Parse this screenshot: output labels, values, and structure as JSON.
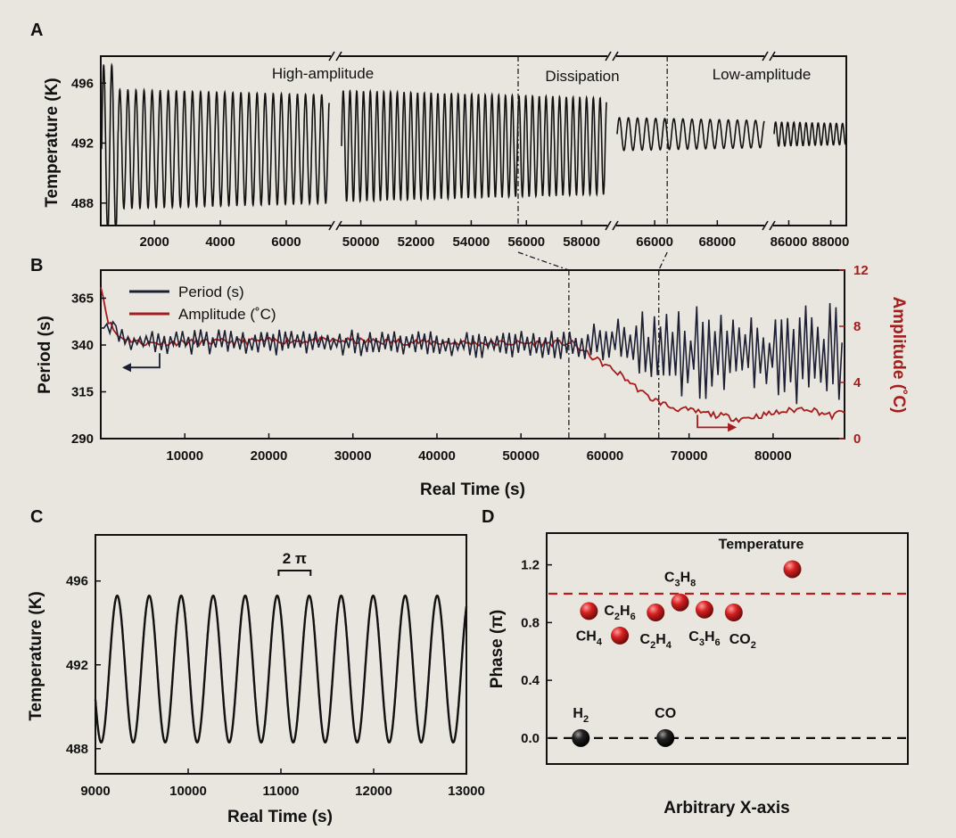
{
  "colors": {
    "period": "#1c1f33",
    "amplitude": "#a51c1c",
    "black": "#111111",
    "phase_red": "#c01818",
    "phase_black": "#111111",
    "ref_line_red": "#b81c1c"
  },
  "panels": {
    "a": {
      "letter": "A",
      "ylabel": "Temperature (K)",
      "regions": [
        "High-amplitude",
        "Dissipation",
        "Low-amplitude"
      ]
    },
    "b": {
      "letter": "B",
      "ylabel_left": "Period (s)",
      "ylabel_right": "Amplitude (˚C)",
      "xlabel": "Real Time (s)"
    },
    "c": {
      "letter": "C",
      "ylabel": "Temperature (K)",
      "xlabel": "Real Time (s)",
      "annotation": "2 π"
    },
    "d": {
      "letter": "D",
      "ylabel": "Phase (π)",
      "xlabel": "Arbitrary X-axis"
    }
  },
  "chart_data": [
    {
      "id": "A",
      "type": "line",
      "name": "temperature-segments",
      "ylabel": "Temperature (K)",
      "ylim": [
        486.5,
        497.8
      ],
      "yticks": [
        488,
        492,
        496
      ],
      "segments": [
        {
          "xlim": [
            400,
            7300
          ],
          "xticks": [
            2000,
            4000,
            6000
          ],
          "period": 245,
          "center": 491.6,
          "amp_start": 4.0,
          "amp_end": 3.6
        },
        {
          "xlim": [
            49300,
            58900
          ],
          "xticks": [
            50000,
            52000,
            54000,
            56000,
            58000
          ],
          "period": 245,
          "center": 491.8,
          "amp_start": 3.7,
          "amp_end": 3.2
        },
        {
          "xlim": [
            64800,
            69500
          ],
          "xticks": [
            66000,
            68000
          ],
          "period": 290,
          "center": 492.6,
          "amp_start": 1.1,
          "amp_end": 0.9
        },
        {
          "xlim": [
            85300,
            88700
          ],
          "xticks": [
            86000,
            88000
          ],
          "period": 290,
          "center": 492.6,
          "amp_start": 0.8,
          "amp_end": 0.7
        }
      ],
      "dashed_markers_x": [
        55700,
        66400
      ]
    },
    {
      "id": "B",
      "type": "line",
      "xlabel": "Real Time (s)",
      "xlim": [
        0,
        88500
      ],
      "xticks": [
        10000,
        20000,
        30000,
        40000,
        50000,
        60000,
        70000,
        80000
      ],
      "y_left": {
        "label": "Period (s)",
        "lim": [
          290,
          380
        ],
        "ticks": [
          290,
          315,
          340,
          365
        ]
      },
      "y_right": {
        "label": "Amplitude (˚C)",
        "lim": [
          0,
          12
        ],
        "ticks": [
          0,
          4,
          8,
          12
        ]
      },
      "legend": "top-left",
      "series": [
        {
          "name": "Period (s)",
          "axis": "left",
          "mean_points": [
            [
              0,
              345
            ],
            [
              1000,
              352
            ],
            [
              3000,
              342
            ],
            [
              55000,
              340
            ],
            [
              62000,
              342
            ],
            [
              70000,
              335
            ],
            [
              88000,
              335
            ]
          ],
          "noise_points": [
            [
              0,
              6
            ],
            [
              55000,
              7
            ],
            [
              62000,
              14
            ],
            [
              70000,
              24
            ],
            [
              88000,
              25
            ]
          ]
        },
        {
          "name": "Amplitude (˚C)",
          "axis": "right",
          "mean_points": [
            [
              0,
              11
            ],
            [
              800,
              8.5
            ],
            [
              2000,
              7.3
            ],
            [
              5000,
              6.8
            ],
            [
              25000,
              7.0
            ],
            [
              45000,
              6.8
            ],
            [
              56000,
              6.8
            ],
            [
              58000,
              6.0
            ],
            [
              62000,
              4.5
            ],
            [
              65000,
              3.0
            ],
            [
              68000,
              2.2
            ],
            [
              72000,
              1.8
            ],
            [
              76000,
              1.4
            ],
            [
              80000,
              1.8
            ],
            [
              84000,
              2.2
            ],
            [
              87000,
              1.6
            ],
            [
              88500,
              2.0
            ]
          ]
        }
      ],
      "dashed_markers_x": [
        55700,
        66400
      ],
      "arrows": [
        {
          "series": "Period (s)",
          "x": 7000,
          "y": 328,
          "direction": "left"
        },
        {
          "series": "Amplitude (˚C)",
          "x": 71000,
          "y": 0.8,
          "direction": "right"
        }
      ]
    },
    {
      "id": "C",
      "type": "line",
      "xlabel": "Real Time (s)",
      "ylabel": "Temperature (K)",
      "xlim": [
        9000,
        13000
      ],
      "xticks": [
        9000,
        10000,
        11000,
        12000,
        13000
      ],
      "ylim": [
        486.8,
        498.2
      ],
      "yticks": [
        488,
        492,
        496
      ],
      "series": [
        {
          "name": "temperature",
          "model": "sine",
          "period": 345,
          "center": 491.8,
          "amplitude": 3.5,
          "first_peak_x": 9235
        }
      ],
      "annotation": {
        "text": "2 π",
        "x_start": 10975,
        "x_end": 11320,
        "y": 496.5
      }
    },
    {
      "id": "D",
      "type": "scatter",
      "ylabel": "Phase (π)",
      "xlabel": "Arbitrary X-axis",
      "xlim": [
        0,
        10
      ],
      "ylim": [
        -0.18,
        1.42
      ],
      "yticks": [
        0.0,
        0.4,
        0.8,
        1.2
      ],
      "ref_lines": [
        {
          "y": 1.0,
          "color": "red"
        },
        {
          "y": 0.0,
          "color": "black"
        }
      ],
      "points": [
        {
          "label_main": "CH",
          "label_sub": "4",
          "label_tail": "",
          "x": 0.75,
          "y": 0.88,
          "color": "red",
          "label_dx": 0,
          "label_dy": 28
        },
        {
          "label_main": "C",
          "label_sub": "2",
          "label_tail": "H6",
          "x": 1.7,
          "y": 0.71,
          "color": "red",
          "label_dx": 0,
          "label_dy": -28
        },
        {
          "label_main": "C",
          "label_sub": "2",
          "label_tail": "H4",
          "x": 2.8,
          "y": 0.87,
          "color": "red",
          "label_dx": 0,
          "label_dy": 30
        },
        {
          "label_main": "C",
          "label_sub": "3",
          "label_tail": "H8",
          "x": 3.55,
          "y": 0.94,
          "color": "red",
          "label_dx": 0,
          "label_dy": -28
        },
        {
          "label_main": "C",
          "label_sub": "3",
          "label_tail": "H6",
          "x": 4.3,
          "y": 0.89,
          "color": "red",
          "label_dx": 0,
          "label_dy": 30
        },
        {
          "label_main": "CO",
          "label_sub": "2",
          "label_tail": "",
          "x": 5.2,
          "y": 0.87,
          "color": "red",
          "label_dx": 10,
          "label_dy": 30
        },
        {
          "label_main": "Temperature",
          "label_sub": "",
          "label_tail": "",
          "x": 7.0,
          "y": 1.17,
          "color": "red",
          "label_dx": -35,
          "label_dy": -28
        },
        {
          "label_main": "H",
          "label_sub": "2",
          "label_tail": "",
          "x": 0.5,
          "y": 0.0,
          "color": "black",
          "label_dx": 0,
          "label_dy": -28
        },
        {
          "label_main": "CO",
          "label_sub": "",
          "label_tail": "",
          "x": 3.1,
          "y": 0.0,
          "color": "black",
          "label_dx": 0,
          "label_dy": -28
        }
      ]
    }
  ]
}
